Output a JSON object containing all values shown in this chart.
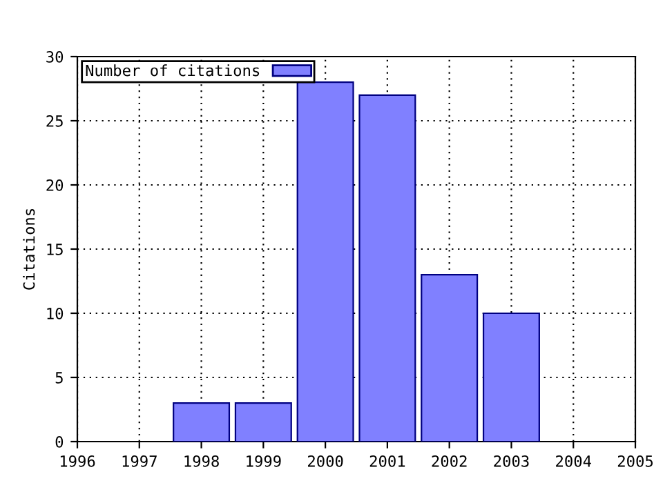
{
  "chart_data": {
    "type": "bar",
    "ylabel": "Citations",
    "x": [
      1998,
      1999,
      2000,
      2001,
      2002,
      2003
    ],
    "series": [
      {
        "name": "Number of citations",
        "color": "#8080ff",
        "values": [
          3,
          3,
          28,
          27,
          13,
          10
        ]
      }
    ],
    "xlim": [
      1996,
      2005
    ],
    "xticks": [
      1996,
      1997,
      1998,
      1999,
      2000,
      2001,
      2002,
      2003,
      2004,
      2005
    ],
    "ylim": [
      0,
      30
    ],
    "yticks": [
      0,
      5,
      10,
      15,
      20,
      25,
      30
    ],
    "grid": true,
    "legend": "top left"
  }
}
